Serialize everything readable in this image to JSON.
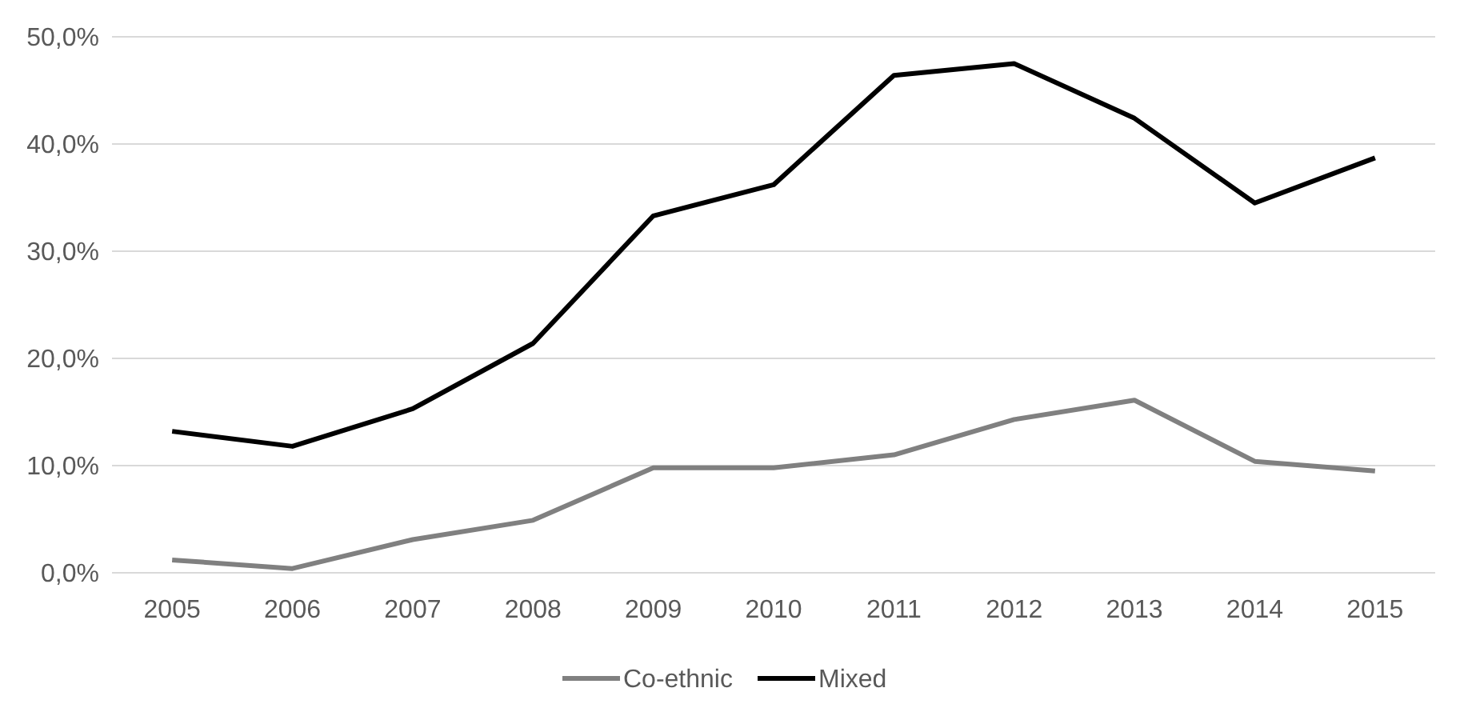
{
  "chart_data": {
    "type": "line",
    "categories": [
      "2005",
      "2006",
      "2007",
      "2008",
      "2009",
      "2010",
      "2011",
      "2012",
      "2013",
      "2014",
      "2015"
    ],
    "series": [
      {
        "name": "Co-ethnic",
        "color": "#808080",
        "values": [
          1.2,
          0.4,
          3.1,
          4.9,
          9.8,
          9.8,
          11.0,
          14.3,
          16.1,
          10.4,
          9.5
        ]
      },
      {
        "name": "Mixed",
        "color": "#000000",
        "values": [
          13.2,
          11.8,
          15.3,
          21.4,
          33.3,
          36.2,
          46.4,
          47.5,
          42.4,
          34.5,
          38.7
        ]
      }
    ],
    "ylim": [
      0,
      50
    ],
    "yticks": [
      {
        "value": 0,
        "label": "0,0%"
      },
      {
        "value": 10,
        "label": "10,0%"
      },
      {
        "value": 20,
        "label": "20,0%"
      },
      {
        "value": 30,
        "label": "30,0%"
      },
      {
        "value": 40,
        "label": "40,0%"
      },
      {
        "value": 50,
        "label": "50,0%"
      }
    ],
    "grid": "y",
    "legend": "bottom",
    "marker": "none",
    "line_style": "solid"
  }
}
